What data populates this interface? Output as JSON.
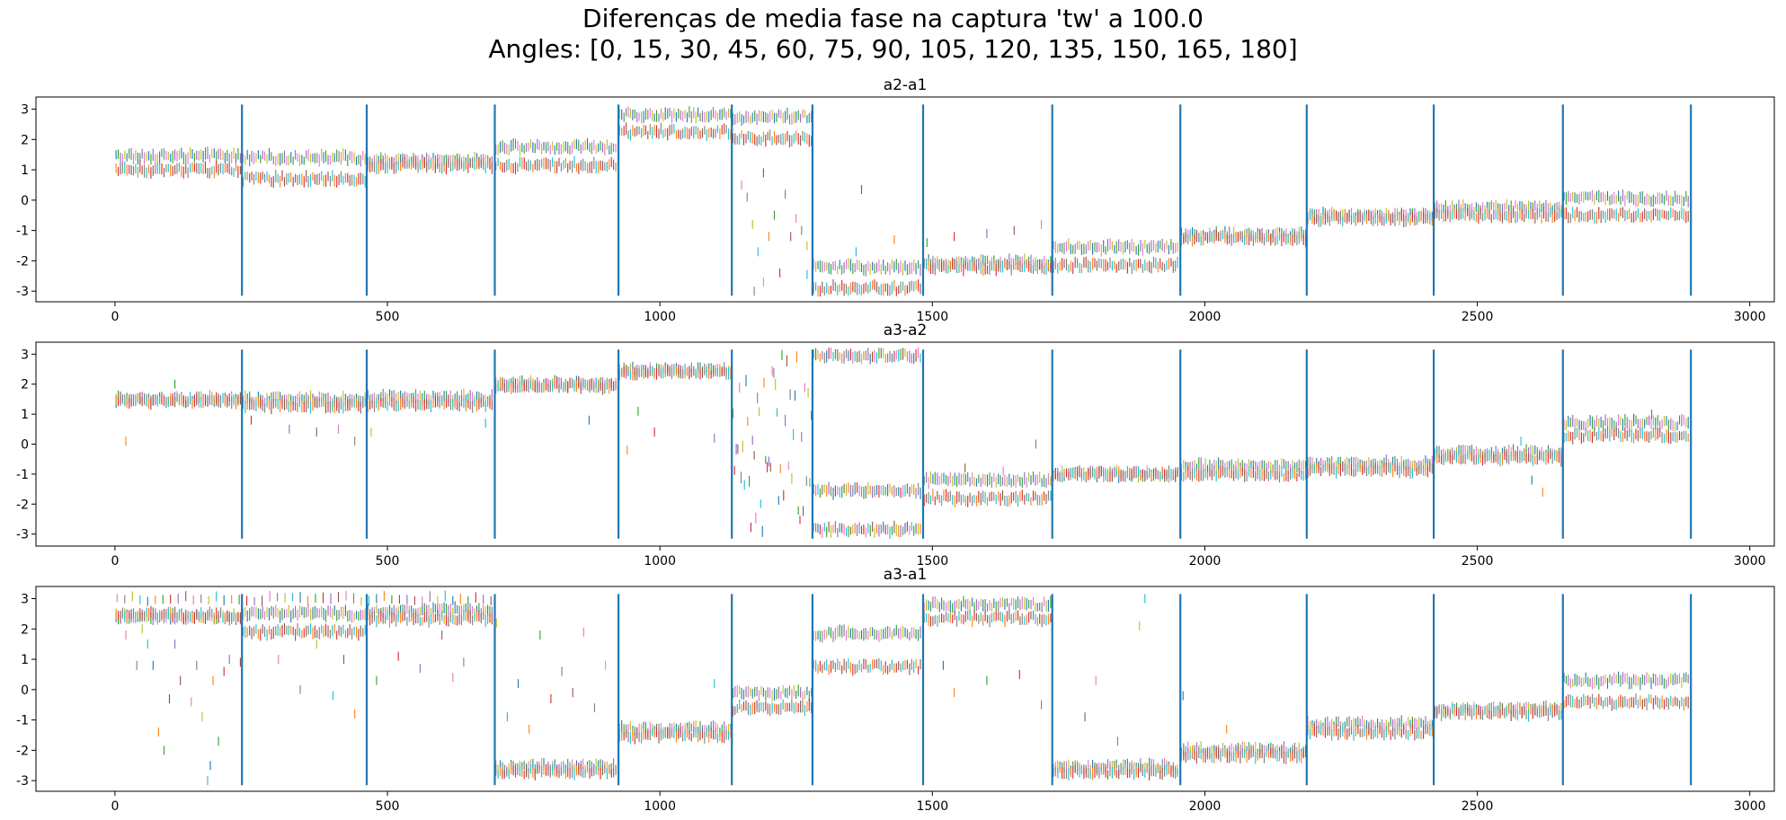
{
  "figure": {
    "title_line1": "Diferenças de media fase na captura 'tw' a 100.0",
    "title_line2": "Angles: [0, 15, 30, 45, 60, 75, 90, 105, 120, 135, 150, 165, 180]"
  },
  "chart_data": [
    {
      "type": "scatter",
      "title": "a2-a1",
      "xlim": [
        -145,
        3045
      ],
      "ylim": [
        -3.35,
        3.4
      ],
      "xticks": [
        0,
        500,
        1000,
        1500,
        2000,
        2500,
        3000
      ],
      "yticks": [
        -3,
        -2,
        -1,
        0,
        1,
        2,
        3
      ],
      "grid": false,
      "marker": "vertical-dash",
      "separators": [
        233,
        462,
        697,
        924,
        1132,
        1280,
        1483,
        1720,
        1955,
        2187,
        2420,
        2657,
        2892
      ],
      "separator_color": "#1f77b4",
      "segments": [
        {
          "x": [
            0,
            233
          ],
          "levels": [
            1.45,
            1.0
          ]
        },
        {
          "x": [
            233,
            462
          ],
          "levels": [
            1.4,
            0.7
          ]
        },
        {
          "x": [
            462,
            697
          ],
          "levels": [
            1.3,
            1.15
          ]
        },
        {
          "x": [
            697,
            924
          ],
          "levels": [
            1.75,
            1.15
          ]
        },
        {
          "x": [
            924,
            1132
          ],
          "levels": [
            2.8,
            2.25
          ]
        },
        {
          "x": [
            1132,
            1280
          ],
          "levels": [
            2.75,
            2.05
          ]
        },
        {
          "x": [
            1280,
            1483
          ],
          "levels": [
            -2.2,
            -2.9
          ]
        },
        {
          "x": [
            1483,
            1720
          ],
          "levels": [
            -2.05,
            -2.2
          ]
        },
        {
          "x": [
            1720,
            1955
          ],
          "levels": [
            -1.55,
            -2.15
          ]
        },
        {
          "x": [
            1955,
            2187
          ],
          "levels": [
            -1.15,
            -1.25
          ]
        },
        {
          "x": [
            2187,
            2420
          ],
          "levels": [
            -0.5,
            -0.6
          ]
        },
        {
          "x": [
            2420,
            2657
          ],
          "levels": [
            -0.25,
            -0.5
          ]
        },
        {
          "x": [
            2657,
            2892
          ],
          "levels": [
            0.05,
            -0.5
          ]
        }
      ],
      "outliers": [
        [
          1150,
          0.5
        ],
        [
          1160,
          0.1
        ],
        [
          1170,
          -0.8
        ],
        [
          1180,
          -1.7
        ],
        [
          1190,
          0.9
        ],
        [
          1200,
          -1.2
        ],
        [
          1210,
          -0.5
        ],
        [
          1220,
          -2.4
        ],
        [
          1230,
          0.2
        ],
        [
          1240,
          -1.2
        ],
        [
          1250,
          -0.6
        ],
        [
          1260,
          -1.0
        ],
        [
          1270,
          -1.5
        ],
        [
          1360,
          -1.7
        ],
        [
          1370,
          0.35
        ],
        [
          1430,
          -1.3
        ],
        [
          1490,
          -1.4
        ],
        [
          1540,
          -1.2
        ],
        [
          1600,
          -1.1
        ],
        [
          1650,
          -1.0
        ],
        [
          1700,
          -0.8
        ],
        [
          1173,
          -3.0
        ],
        [
          1190,
          -2.7
        ],
        [
          1270,
          -2.45
        ]
      ]
    },
    {
      "type": "scatter",
      "title": "a3-a2",
      "xlim": [
        -145,
        3045
      ],
      "ylim": [
        -3.4,
        3.4
      ],
      "xticks": [
        0,
        500,
        1000,
        1500,
        2000,
        2500,
        3000
      ],
      "yticks": [
        -3,
        -2,
        -1,
        0,
        1,
        2,
        3
      ],
      "grid": false,
      "marker": "vertical-dash",
      "separators": [
        233,
        462,
        697,
        924,
        1132,
        1280,
        1483,
        1720,
        1955,
        2187,
        2420,
        2657,
        2892
      ],
      "separator_color": "#1f77b4",
      "segments": [
        {
          "x": [
            0,
            233
          ],
          "levels": [
            1.5,
            1.45
          ]
        },
        {
          "x": [
            233,
            462
          ],
          "levels": [
            1.5,
            1.3
          ]
        },
        {
          "x": [
            462,
            697
          ],
          "levels": [
            1.55,
            1.35
          ]
        },
        {
          "x": [
            697,
            924
          ],
          "levels": [
            2.0,
            1.95
          ]
        },
        {
          "x": [
            924,
            1132
          ],
          "levels": [
            2.45,
            2.4
          ]
        },
        {
          "x": [
            1280,
            1483
          ],
          "levels": [
            2.95,
            -1.55,
            -2.85
          ]
        },
        {
          "x": [
            1483,
            1720
          ],
          "levels": [
            -1.2,
            -1.8
          ]
        },
        {
          "x": [
            1720,
            1955
          ],
          "levels": [
            -1.0,
            -1.0
          ]
        },
        {
          "x": [
            1955,
            2187
          ],
          "levels": [
            -0.75,
            -1.0
          ]
        },
        {
          "x": [
            2187,
            2420
          ],
          "levels": [
            -0.65,
            -0.85
          ]
        },
        {
          "x": [
            2420,
            2657
          ],
          "levels": [
            -0.3,
            -0.45
          ]
        },
        {
          "x": [
            2657,
            2892
          ],
          "levels": [
            0.7,
            0.3
          ]
        }
      ],
      "scatter_band": {
        "x": [
          1132,
          1280
        ],
        "y": [
          -3.0,
          3.0
        ]
      },
      "outliers": [
        [
          20,
          0.1
        ],
        [
          110,
          2.0
        ],
        [
          250,
          0.8
        ],
        [
          320,
          0.5
        ],
        [
          370,
          0.4
        ],
        [
          410,
          0.5
        ],
        [
          440,
          0.1
        ],
        [
          470,
          0.4
        ],
        [
          680,
          0.7
        ],
        [
          870,
          0.8
        ],
        [
          940,
          -0.2
        ],
        [
          960,
          1.1
        ],
        [
          990,
          0.4
        ],
        [
          1100,
          0.2
        ],
        [
          1560,
          -0.8
        ],
        [
          1630,
          -0.9
        ],
        [
          1690,
          0.0
        ],
        [
          1720,
          -0.3
        ],
        [
          2580,
          0.1
        ],
        [
          2600,
          -1.2
        ],
        [
          2620,
          -1.6
        ],
        [
          2820,
          1.0
        ]
      ]
    },
    {
      "type": "scatter",
      "title": "a3-a1",
      "xlim": [
        -145,
        3045
      ],
      "ylim": [
        -3.35,
        3.4
      ],
      "xticks": [
        0,
        500,
        1000,
        1500,
        2000,
        2500,
        3000
      ],
      "yticks": [
        -3,
        -2,
        -1,
        0,
        1,
        2,
        3
      ],
      "grid": false,
      "marker": "vertical-dash",
      "separators": [
        233,
        462,
        697,
        924,
        1132,
        1280,
        1483,
        1720,
        1955,
        2187,
        2420,
        2657,
        2892
      ],
      "separator_color": "#1f77b4",
      "segments": [
        {
          "x": [
            0,
            233
          ],
          "levels": [
            2.4,
            2.45
          ]
        },
        {
          "x": [
            233,
            462
          ],
          "levels": [
            2.5,
            1.9
          ]
        },
        {
          "x": [
            462,
            697
          ],
          "levels": [
            2.6,
            2.35
          ]
        },
        {
          "x": [
            697,
            924
          ],
          "levels": [
            -2.55,
            -2.7
          ]
        },
        {
          "x": [
            924,
            1132
          ],
          "levels": [
            -1.3,
            -1.5
          ]
        },
        {
          "x": [
            1132,
            1280
          ],
          "levels": [
            -0.1,
            -0.6
          ]
        },
        {
          "x": [
            1280,
            1483
          ],
          "levels": [
            1.85,
            0.75
          ]
        },
        {
          "x": [
            1483,
            1720
          ],
          "levels": [
            2.8,
            2.35
          ]
        },
        {
          "x": [
            1720,
            1955
          ],
          "levels": [
            -2.55,
            -2.7
          ]
        },
        {
          "x": [
            1955,
            2187
          ],
          "levels": [
            -2.0,
            -2.15
          ]
        },
        {
          "x": [
            2187,
            2420
          ],
          "levels": [
            -1.15,
            -1.4
          ]
        },
        {
          "x": [
            2420,
            2657
          ],
          "levels": [
            -0.65,
            -0.75
          ]
        },
        {
          "x": [
            2657,
            2892
          ],
          "levels": [
            0.3,
            -0.4
          ]
        }
      ],
      "upper_scatter": {
        "x": [
          0,
          697
        ],
        "y": [
          2.9,
          3.1
        ]
      },
      "outliers": [
        [
          20,
          1.8
        ],
        [
          40,
          0.8
        ],
        [
          50,
          2.0
        ],
        [
          60,
          1.5
        ],
        [
          70,
          0.8
        ],
        [
          80,
          -1.4
        ],
        [
          90,
          -2.0
        ],
        [
          100,
          -0.3
        ],
        [
          110,
          1.5
        ],
        [
          120,
          0.3
        ],
        [
          140,
          -0.4
        ],
        [
          150,
          0.8
        ],
        [
          160,
          -0.9
        ],
        [
          170,
          -3.0
        ],
        [
          175,
          -2.5
        ],
        [
          180,
          0.3
        ],
        [
          190,
          -1.7
        ],
        [
          200,
          0.6
        ],
        [
          210,
          1.0
        ],
        [
          230,
          0.9
        ],
        [
          300,
          1.0
        ],
        [
          340,
          0.0
        ],
        [
          370,
          1.5
        ],
        [
          400,
          -0.2
        ],
        [
          420,
          1.0
        ],
        [
          440,
          -0.8
        ],
        [
          480,
          0.3
        ],
        [
          520,
          1.1
        ],
        [
          560,
          0.7
        ],
        [
          600,
          1.8
        ],
        [
          620,
          0.4
        ],
        [
          640,
          0.9
        ],
        [
          700,
          2.2
        ],
        [
          720,
          -0.9
        ],
        [
          740,
          0.2
        ],
        [
          760,
          -1.3
        ],
        [
          780,
          1.8
        ],
        [
          800,
          -0.3
        ],
        [
          820,
          0.6
        ],
        [
          840,
          -0.1
        ],
        [
          860,
          1.9
        ],
        [
          880,
          -0.6
        ],
        [
          900,
          0.8
        ],
        [
          1100,
          0.2
        ],
        [
          1520,
          0.8
        ],
        [
          1540,
          -0.1
        ],
        [
          1600,
          0.3
        ],
        [
          1660,
          0.5
        ],
        [
          1700,
          -0.5
        ],
        [
          1780,
          -0.9
        ],
        [
          1800,
          0.3
        ],
        [
          1840,
          -1.7
        ],
        [
          1880,
          2.1
        ],
        [
          1890,
          3.0
        ],
        [
          1960,
          -0.2
        ],
        [
          2040,
          -1.3
        ]
      ]
    }
  ]
}
